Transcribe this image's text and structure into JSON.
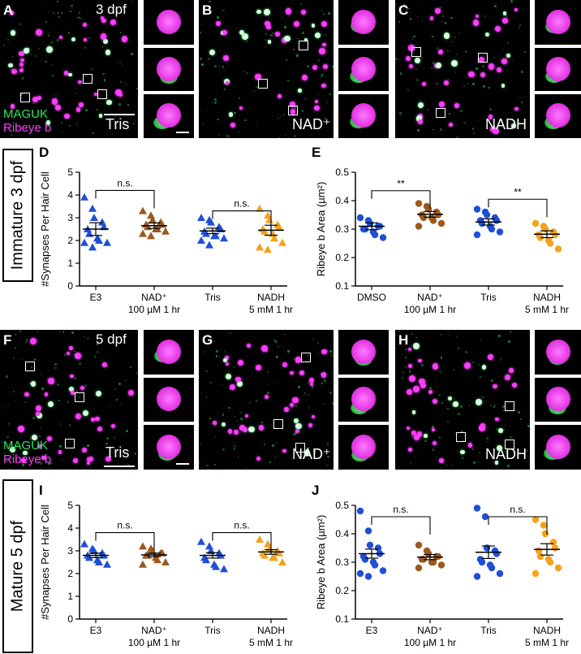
{
  "top_row": {
    "time_label": "3 dpf",
    "panels": [
      {
        "letter": "A",
        "condition": "Tris"
      },
      {
        "letter": "B",
        "condition": "NAD⁺"
      },
      {
        "letter": "C",
        "condition": "NADH"
      }
    ],
    "legend_green": "MAGUK",
    "legend_magenta": "Ribeye b"
  },
  "bottom_row": {
    "time_label": "5 dpf",
    "panels": [
      {
        "letter": "F",
        "condition": "Tris"
      },
      {
        "letter": "G",
        "condition": "NAD⁺"
      },
      {
        "letter": "H",
        "condition": "NADH"
      }
    ],
    "legend_green": "MAGUK",
    "legend_magenta": "Ribeye b"
  },
  "side_labels": {
    "immature": "Immature 3 dpf",
    "mature": "Mature 5 dpf"
  },
  "colors": {
    "blue": "#1f4fd6",
    "brown": "#9c5a1e",
    "orange": "#f3a21a",
    "green": "#2ee65a",
    "magenta": "#ff3cff"
  },
  "chart_data": [
    {
      "id": "D",
      "type": "scatter",
      "ylabel": "#Synapses Per Hair Cell",
      "ylim": [
        0,
        5
      ],
      "yticks": [
        "0",
        "1",
        "2",
        "3",
        "4",
        "5"
      ],
      "categories": [
        {
          "line1": "E3",
          "line2": ""
        },
        {
          "line1": "NAD⁺",
          "line2": "100 µM 1 hr"
        },
        {
          "line1": "Tris",
          "line2": ""
        },
        {
          "line1": "NADH",
          "line2": "5 mM 1 hr"
        }
      ],
      "marker": "triangle",
      "series": [
        {
          "color": "#1f4fd6",
          "mean": 2.5,
          "sem": 0.28,
          "values": [
            3.9,
            3.4,
            3.0,
            2.8,
            2.6,
            2.5,
            2.3,
            2.1,
            2.0,
            1.9,
            1.9,
            1.7
          ]
        },
        {
          "color": "#9c5a1e",
          "mean": 2.65,
          "sem": 0.12,
          "values": [
            3.3,
            3.1,
            2.9,
            2.8,
            2.7,
            2.7,
            2.6,
            2.5,
            2.5,
            2.4,
            2.3,
            2.2
          ]
        },
        {
          "color": "#1f4fd6",
          "mean": 2.42,
          "sem": 0.12,
          "values": [
            3.0,
            2.9,
            2.8,
            2.6,
            2.5,
            2.4,
            2.3,
            2.2,
            2.2,
            2.1,
            2.0,
            1.8
          ]
        },
        {
          "color": "#f3a21a",
          "mean": 2.45,
          "sem": 0.22,
          "values": [
            3.4,
            3.1,
            2.9,
            2.7,
            2.6,
            2.5,
            2.4,
            2.3,
            2.1,
            1.9,
            1.7,
            1.6
          ]
        }
      ],
      "brackets": [
        {
          "from": 0,
          "to": 1,
          "label": "n.s.",
          "y": 4.2
        },
        {
          "from": 2,
          "to": 3,
          "label": "n.s.",
          "y": 3.3
        }
      ]
    },
    {
      "id": "E",
      "type": "scatter",
      "ylabel": "Ribeye b Area (µm²)",
      "ylim": [
        0.1,
        0.5
      ],
      "yticks": [
        "0.1",
        "0.2",
        "0.3",
        "0.4",
        "0.5"
      ],
      "categories": [
        {
          "line1": "DMSO",
          "line2": ""
        },
        {
          "line1": "NAD⁺",
          "line2": "100 µM 1 hr"
        },
        {
          "line1": "Tris",
          "line2": ""
        },
        {
          "line1": "NADH",
          "line2": "5 mM 1 hr"
        }
      ],
      "marker": "circle",
      "series": [
        {
          "color": "#1f4fd6",
          "mean": 0.31,
          "sem": 0.012,
          "values": [
            0.34,
            0.33,
            0.32,
            0.31,
            0.31,
            0.3,
            0.3,
            0.29,
            0.28,
            0.27
          ]
        },
        {
          "color": "#9c5a1e",
          "mean": 0.352,
          "sem": 0.01,
          "values": [
            0.39,
            0.38,
            0.37,
            0.36,
            0.35,
            0.35,
            0.34,
            0.34,
            0.33,
            0.32,
            0.31
          ]
        },
        {
          "color": "#1f4fd6",
          "mean": 0.325,
          "sem": 0.011,
          "values": [
            0.37,
            0.36,
            0.35,
            0.34,
            0.33,
            0.33,
            0.32,
            0.31,
            0.3,
            0.29,
            0.28
          ]
        },
        {
          "color": "#f3a21a",
          "mean": 0.282,
          "sem": 0.012,
          "values": [
            0.32,
            0.31,
            0.3,
            0.29,
            0.28,
            0.28,
            0.27,
            0.26,
            0.25,
            0.23
          ]
        }
      ],
      "brackets": [
        {
          "from": 0,
          "to": 1,
          "label": "**",
          "y": 0.435
        },
        {
          "from": 2,
          "to": 3,
          "label": "**",
          "y": 0.405
        }
      ]
    },
    {
      "id": "I",
      "type": "scatter",
      "ylabel": "#Synapses Per Hair Cell",
      "ylim": [
        0,
        5
      ],
      "yticks": [
        "0",
        "1",
        "2",
        "3",
        "4",
        "5"
      ],
      "categories": [
        {
          "line1": "E3",
          "line2": ""
        },
        {
          "line1": "NAD⁺",
          "line2": "100 µM 1 hr"
        },
        {
          "line1": "Tris",
          "line2": ""
        },
        {
          "line1": "NADH",
          "line2": "5 mM 1 hr"
        }
      ],
      "marker": "triangle",
      "series": [
        {
          "color": "#1f4fd6",
          "mean": 2.8,
          "sem": 0.1,
          "values": [
            3.3,
            3.1,
            3.0,
            2.9,
            2.8,
            2.8,
            2.7,
            2.6,
            2.5,
            2.4
          ]
        },
        {
          "color": "#9c5a1e",
          "mean": 2.82,
          "sem": 0.08,
          "values": [
            3.2,
            3.1,
            3.0,
            2.9,
            2.9,
            2.8,
            2.8,
            2.7,
            2.6,
            2.5,
            2.4
          ]
        },
        {
          "color": "#1f4fd6",
          "mean": 2.8,
          "sem": 0.12,
          "values": [
            3.4,
            3.2,
            3.0,
            2.9,
            2.8,
            2.7,
            2.6,
            2.4,
            2.3,
            2.2
          ]
        },
        {
          "color": "#f3a21a",
          "mean": 2.95,
          "sem": 0.1,
          "values": [
            3.5,
            3.3,
            3.1,
            3.0,
            2.9,
            2.9,
            2.8,
            2.7,
            2.7,
            2.5
          ]
        }
      ],
      "brackets": [
        {
          "from": 0,
          "to": 1,
          "label": "n.s.",
          "y": 3.8
        },
        {
          "from": 2,
          "to": 3,
          "label": "n.s.",
          "y": 3.8
        }
      ]
    },
    {
      "id": "J",
      "type": "scatter",
      "ylabel": "Ribeye b Area (µm²)",
      "ylim": [
        0.1,
        0.5
      ],
      "yticks": [
        "0.1",
        "0.2",
        "0.3",
        "0.4",
        "0.5"
      ],
      "categories": [
        {
          "line1": "E3",
          "line2": ""
        },
        {
          "line1": "NAD⁺",
          "line2": "100 µM 1 hr"
        },
        {
          "line1": "Tris",
          "line2": ""
        },
        {
          "line1": "NADH",
          "line2": "5 mM 1 hr"
        }
      ],
      "marker": "circle",
      "series": [
        {
          "color": "#1f4fd6",
          "mean": 0.33,
          "sem": 0.016,
          "values": [
            0.48,
            0.41,
            0.36,
            0.35,
            0.33,
            0.32,
            0.31,
            0.3,
            0.29,
            0.27,
            0.26,
            0.25
          ]
        },
        {
          "color": "#9c5a1e",
          "mean": 0.318,
          "sem": 0.009,
          "values": [
            0.36,
            0.34,
            0.33,
            0.32,
            0.32,
            0.31,
            0.31,
            0.3,
            0.3,
            0.29,
            0.28
          ]
        },
        {
          "color": "#1f4fd6",
          "mean": 0.335,
          "sem": 0.022,
          "values": [
            0.49,
            0.46,
            0.35,
            0.34,
            0.33,
            0.31,
            0.3,
            0.29,
            0.28,
            0.26,
            0.25
          ]
        },
        {
          "color": "#f3a21a",
          "mean": 0.345,
          "sem": 0.02,
          "values": [
            0.45,
            0.43,
            0.4,
            0.37,
            0.35,
            0.34,
            0.32,
            0.31,
            0.3,
            0.28,
            0.26
          ]
        }
      ],
      "brackets": [
        {
          "from": 0,
          "to": 1,
          "label": "n.s.",
          "y": 0.46
        },
        {
          "from": 2,
          "to": 3,
          "label": "n.s.",
          "y": 0.46
        }
      ]
    }
  ]
}
